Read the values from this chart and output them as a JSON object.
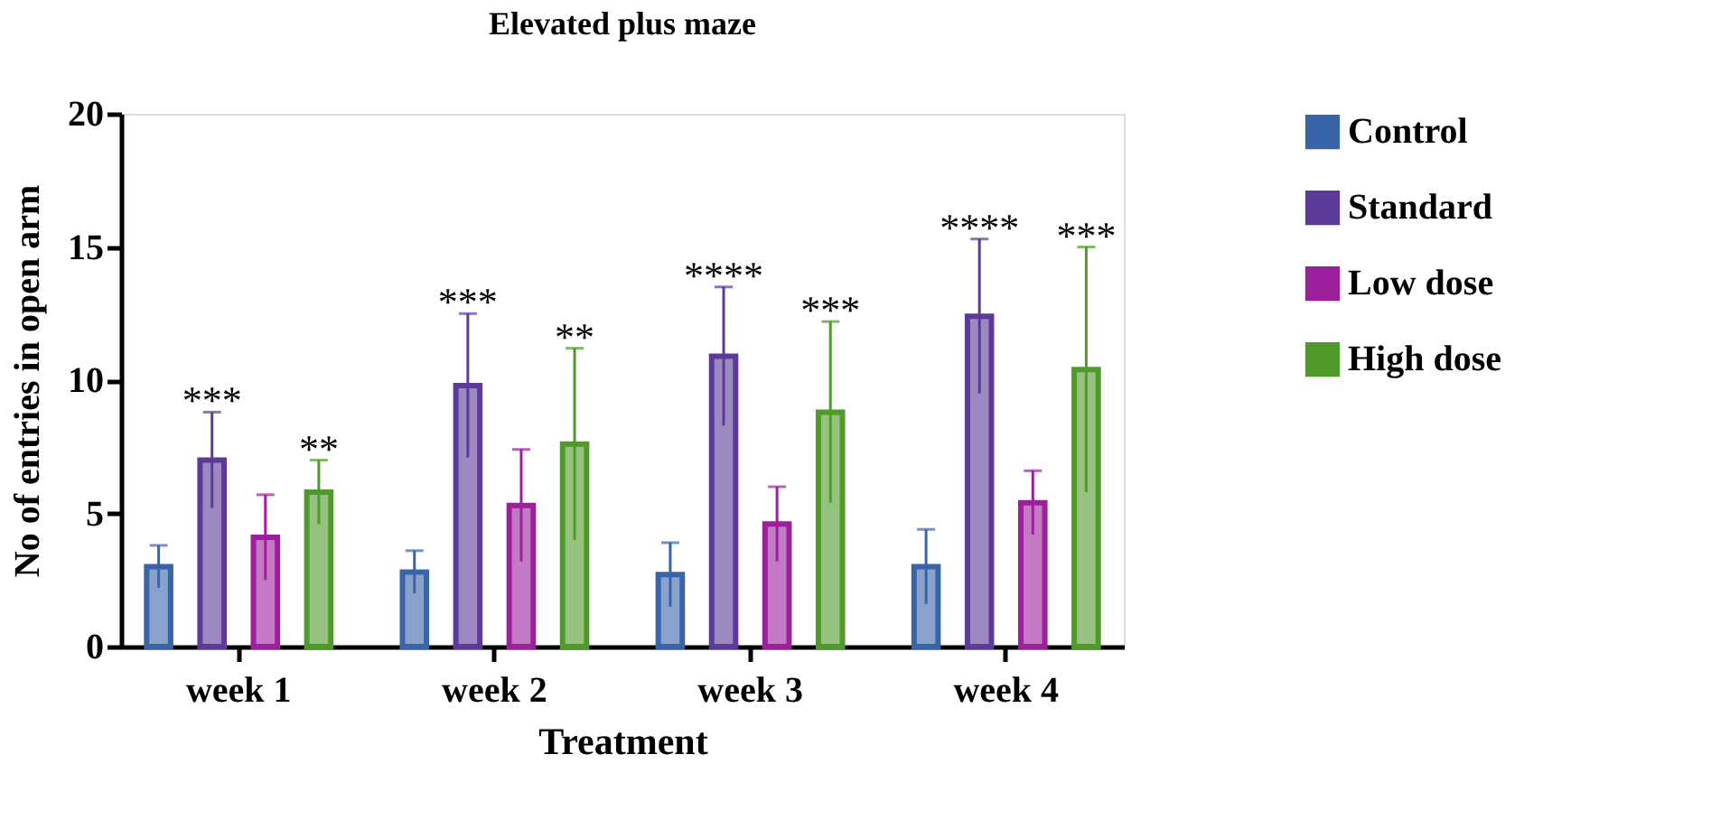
{
  "chart_data": {
    "type": "bar",
    "title": "Elevated plus maze",
    "xlabel": "Treatment",
    "ylabel": "No of entries in open arm",
    "categories": [
      "week 1",
      "week 2",
      "week 3",
      "week 4"
    ],
    "series": [
      {
        "name": "Control",
        "color": "#3a64a8",
        "values": [
          3.0,
          2.8,
          2.7,
          3.0
        ],
        "errors": [
          0.8,
          0.8,
          1.2,
          1.4
        ]
      },
      {
        "name": "Standard",
        "color": "#5b3a9a",
        "values": [
          7.0,
          9.8,
          10.9,
          12.4
        ],
        "errors": [
          1.8,
          2.7,
          2.6,
          2.9
        ],
        "value_labels": [
          "***",
          "***",
          "****",
          "****"
        ]
      },
      {
        "name": "Low dose",
        "color": "#9c1f9c",
        "values": [
          4.1,
          5.3,
          4.6,
          5.4
        ],
        "errors": [
          1.6,
          2.1,
          1.4,
          1.2
        ]
      },
      {
        "name": "High dose",
        "color": "#4f9a2a",
        "values": [
          5.8,
          7.6,
          8.8,
          10.4
        ],
        "errors": [
          1.2,
          3.6,
          3.4,
          4.6
        ],
        "value_labels": [
          "**",
          "**",
          "***",
          "***"
        ]
      }
    ],
    "ylim": [
      0,
      20
    ],
    "yticks": [
      0,
      5,
      10,
      15,
      20
    ],
    "grid": false,
    "legend": "right"
  }
}
